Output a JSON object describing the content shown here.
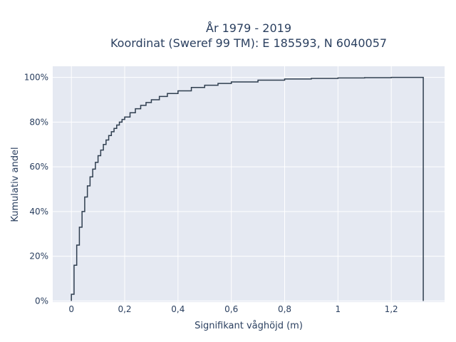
{
  "chart_data": {
    "type": "line",
    "line_shape": "step",
    "title_line1": "År 1979 - 2019",
    "title_line2": "Koordinat (Sweref 99 TM): E 185593, N 6040057",
    "xlabel": "Signifikant våghöjd (m)",
    "ylabel": "Kumulativ andel",
    "xlim": [
      -0.07,
      1.4
    ],
    "ylim": [
      -0.005,
      1.05
    ],
    "x_ticks": [
      0,
      0.2,
      0.4,
      0.6,
      0.8,
      1,
      1.2
    ],
    "x_tick_labels": [
      "0",
      "0,2",
      "0,4",
      "0,6",
      "0,8",
      "1",
      "1,2"
    ],
    "y_ticks": [
      0,
      0.2,
      0.4,
      0.6,
      0.8,
      1
    ],
    "y_tick_labels": [
      "0%",
      "20%",
      "40%",
      "60%",
      "80%",
      "100%"
    ],
    "grid": true,
    "colors": {
      "line": "#2f3e4f",
      "plot_bg": "#e5e9f2",
      "grid": "#ffffff",
      "text": "#2a3f5f"
    },
    "series": [
      {
        "x": [
          0,
          0.01,
          0.02,
          0.03,
          0.04,
          0.05,
          0.06,
          0.07,
          0.08,
          0.09,
          0.1,
          0.11,
          0.12,
          0.13,
          0.14,
          0.15,
          0.16,
          0.17,
          0.18,
          0.19,
          0.2,
          0.22,
          0.24,
          0.26,
          0.28,
          0.3,
          0.33,
          0.36,
          0.4,
          0.45,
          0.5,
          0.55,
          0.6,
          0.7,
          0.8,
          0.9,
          1.0,
          1.1,
          1.2,
          1.32
        ],
        "y": [
          0.03,
          0.16,
          0.25,
          0.33,
          0.4,
          0.465,
          0.515,
          0.555,
          0.59,
          0.62,
          0.65,
          0.675,
          0.7,
          0.72,
          0.74,
          0.757,
          0.772,
          0.787,
          0.8,
          0.812,
          0.823,
          0.842,
          0.86,
          0.875,
          0.888,
          0.9,
          0.915,
          0.928,
          0.94,
          0.955,
          0.965,
          0.973,
          0.98,
          0.988,
          0.993,
          0.996,
          0.998,
          0.999,
          1.0,
          1.0
        ]
      }
    ]
  }
}
